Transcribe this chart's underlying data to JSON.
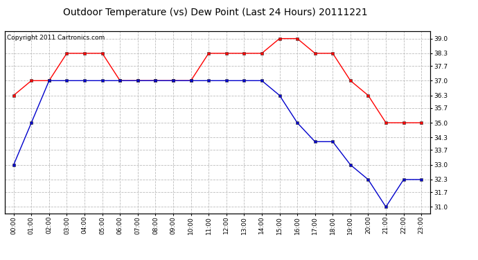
{
  "title": "Outdoor Temperature (vs) Dew Point (Last 24 Hours) 20111221",
  "copyright_text": "Copyright 2011 Cartronics.com",
  "x_labels": [
    "00:00",
    "01:00",
    "02:00",
    "03:00",
    "04:00",
    "05:00",
    "06:00",
    "07:00",
    "08:00",
    "09:00",
    "10:00",
    "11:00",
    "12:00",
    "13:00",
    "14:00",
    "15:00",
    "16:00",
    "17:00",
    "18:00",
    "19:00",
    "20:00",
    "21:00",
    "22:00",
    "23:00"
  ],
  "temp_data": [
    36.3,
    37.0,
    37.0,
    38.3,
    38.3,
    38.3,
    37.0,
    37.0,
    37.0,
    37.0,
    37.0,
    38.3,
    38.3,
    38.3,
    38.3,
    39.0,
    39.0,
    38.3,
    38.3,
    37.0,
    36.3,
    35.0,
    35.0,
    35.0
  ],
  "dew_data": [
    33.0,
    35.0,
    37.0,
    37.0,
    37.0,
    37.0,
    37.0,
    37.0,
    37.0,
    37.0,
    37.0,
    37.0,
    37.0,
    37.0,
    37.0,
    36.3,
    35.0,
    34.1,
    34.1,
    33.0,
    32.3,
    31.0,
    32.3,
    32.3
  ],
  "temp_color": "#ff0000",
  "dew_color": "#0000cc",
  "bg_color": "#ffffff",
  "grid_color": "#bbbbbb",
  "ylim_min": 30.7,
  "ylim_max": 39.35,
  "yticks": [
    31.0,
    31.7,
    32.3,
    33.0,
    33.7,
    34.3,
    35.0,
    35.7,
    36.3,
    37.0,
    37.7,
    38.3,
    39.0
  ],
  "title_fontsize": 10,
  "axis_fontsize": 6.5,
  "copyright_fontsize": 6.5,
  "marker_size": 3,
  "line_width": 1.0
}
